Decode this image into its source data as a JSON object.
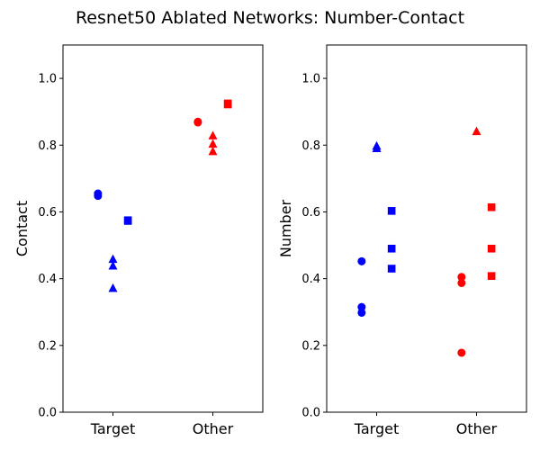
{
  "chart_data": {
    "title": "Resnet50 Ablated Networks: Number-Contact",
    "panels": [
      {
        "type": "scatter",
        "ylabel": "Contact",
        "categories": [
          "Target",
          "Other"
        ],
        "ylim": [
          0,
          1.1
        ],
        "yticks": [
          "0.0",
          "0.2",
          "0.4",
          "0.6",
          "0.8",
          "1.0"
        ],
        "grid": false,
        "series": [
          {
            "color": "#0000ff",
            "marker": "circle",
            "category": "Target",
            "offset": "left",
            "values": [
              0.655,
              0.648
            ]
          },
          {
            "color": "#0000ff",
            "marker": "triangle",
            "category": "Target",
            "offset": "center",
            "values": [
              0.458,
              0.438,
              0.371
            ]
          },
          {
            "color": "#0000ff",
            "marker": "square",
            "category": "Target",
            "offset": "right",
            "values": [
              0.575,
              0.573
            ]
          },
          {
            "color": "#ff0000",
            "marker": "circle",
            "category": "Other",
            "offset": "left",
            "values": [
              0.87,
              0.868
            ]
          },
          {
            "color": "#ff0000",
            "marker": "triangle",
            "category": "Other",
            "offset": "center",
            "values": [
              0.828,
              0.803,
              0.781
            ]
          },
          {
            "color": "#ff0000",
            "marker": "square",
            "category": "Other",
            "offset": "right",
            "values": [
              0.925,
              0.922
            ]
          }
        ]
      },
      {
        "type": "scatter",
        "ylabel": "Number",
        "categories": [
          "Target",
          "Other"
        ],
        "ylim": [
          0,
          1.1
        ],
        "yticks": [
          "0.0",
          "0.2",
          "0.4",
          "0.6",
          "0.8",
          "1.0"
        ],
        "grid": false,
        "series": [
          {
            "color": "#0000ff",
            "marker": "circle",
            "category": "Target",
            "offset": "left",
            "values": [
              0.452,
              0.315,
              0.298
            ]
          },
          {
            "color": "#0000ff",
            "marker": "triangle",
            "category": "Target",
            "offset": "center",
            "values": [
              0.797,
              0.79
            ]
          },
          {
            "color": "#0000ff",
            "marker": "square",
            "category": "Target",
            "offset": "right",
            "values": [
              0.603,
              0.49,
              0.43
            ]
          },
          {
            "color": "#ff0000",
            "marker": "circle",
            "category": "Other",
            "offset": "left",
            "values": [
              0.405,
              0.387,
              0.178
            ]
          },
          {
            "color": "#ff0000",
            "marker": "triangle",
            "category": "Other",
            "offset": "center",
            "values": [
              0.841
            ]
          },
          {
            "color": "#ff0000",
            "marker": "square",
            "category": "Other",
            "offset": "right",
            "values": [
              0.614,
              0.49,
              0.408
            ]
          }
        ]
      }
    ]
  }
}
